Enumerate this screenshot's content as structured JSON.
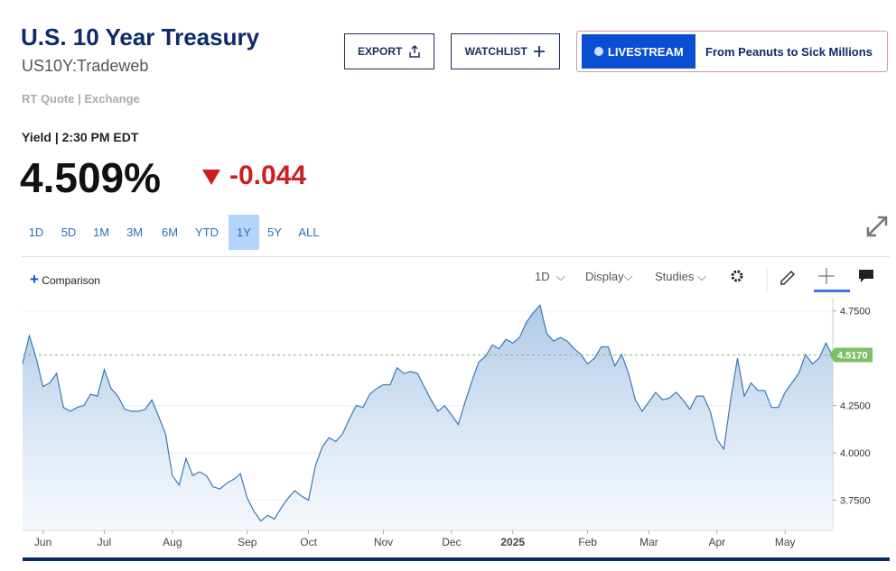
{
  "header": {
    "title": "U.S. 10 Year Treasury",
    "symbol": "US10Y:Tradeweb",
    "quote_source": "RT Quote | Exchange",
    "yield_label": "Yield | 2:30 PM EDT",
    "price": "4.509%",
    "change": "-0.044"
  },
  "buttons": {
    "export": "EXPORT",
    "watchlist": "WATCHLIST",
    "livestream": "LIVESTREAM",
    "promo": "From Peanuts to Sick Millions"
  },
  "ranges": [
    "1D",
    "5D",
    "1M",
    "3M",
    "6M",
    "YTD",
    "1Y",
    "5Y",
    "ALL"
  ],
  "toolbar": {
    "comparison": "Comparison",
    "interval": "1D",
    "display": "Display",
    "studies": "Studies"
  },
  "chart_data": {
    "type": "area",
    "color": "#3b78b4",
    "grid": true,
    "axis_side": "right",
    "categories": [
      null,
      null,
      null,
      "Jun",
      null,
      null,
      null,
      null,
      null,
      null,
      null,
      null,
      "Jul",
      null,
      null,
      null,
      null,
      null,
      null,
      null,
      null,
      null,
      "Aug",
      null,
      null,
      null,
      null,
      null,
      null,
      null,
      null,
      null,
      null,
      "Sep",
      null,
      null,
      null,
      null,
      null,
      null,
      null,
      null,
      "Oct",
      null,
      null,
      null,
      null,
      null,
      null,
      null,
      null,
      null,
      null,
      "Nov",
      null,
      null,
      null,
      null,
      null,
      null,
      null,
      null,
      null,
      "Dec",
      null,
      null,
      null,
      null,
      null,
      null,
      null,
      null,
      "2025",
      null,
      null,
      null,
      null,
      null,
      null,
      null,
      null,
      null,
      null,
      "Feb",
      null,
      null,
      null,
      null,
      null,
      null,
      null,
      null,
      "Mar",
      null,
      null,
      null,
      null,
      null,
      null,
      null,
      null,
      null,
      "Apr",
      null,
      null,
      null,
      null,
      null,
      null,
      null,
      null,
      null,
      "May",
      null,
      null,
      null,
      null,
      null,
      null,
      null
    ],
    "values": [
      4.47,
      4.62,
      4.5,
      4.35,
      4.37,
      4.42,
      4.24,
      4.22,
      4.24,
      4.25,
      4.31,
      4.3,
      4.44,
      4.34,
      4.3,
      4.23,
      4.22,
      4.22,
      4.23,
      4.28,
      4.19,
      4.1,
      3.88,
      3.83,
      3.97,
      3.88,
      3.9,
      3.88,
      3.82,
      3.81,
      3.84,
      3.86,
      3.89,
      3.76,
      3.69,
      3.64,
      3.67,
      3.65,
      3.71,
      3.76,
      3.8,
      3.77,
      3.75,
      3.93,
      4.03,
      4.08,
      4.06,
      4.1,
      4.18,
      4.25,
      4.24,
      4.31,
      4.34,
      4.36,
      4.36,
      4.45,
      4.42,
      4.43,
      4.42,
      4.35,
      4.28,
      4.22,
      4.25,
      4.2,
      4.15,
      4.27,
      4.38,
      4.48,
      4.51,
      4.57,
      4.55,
      4.6,
      4.58,
      4.61,
      4.69,
      4.74,
      4.78,
      4.63,
      4.59,
      4.61,
      4.59,
      4.55,
      4.52,
      4.47,
      4.5,
      4.56,
      4.56,
      4.46,
      4.52,
      4.42,
      4.28,
      4.22,
      4.27,
      4.32,
      4.28,
      4.29,
      4.32,
      4.28,
      4.23,
      4.3,
      4.3,
      4.22,
      4.07,
      4.02,
      4.28,
      4.5,
      4.3,
      4.37,
      4.33,
      4.33,
      4.24,
      4.24,
      4.32,
      4.37,
      4.42,
      4.52,
      4.47,
      4.5,
      4.58,
      4.51
    ],
    "ylim": [
      3.59,
      4.82
    ],
    "yticks": [
      {
        "value": 3.75,
        "label": "3.7500"
      },
      {
        "value": 4,
        "label": "4.0000"
      },
      {
        "value": 4.25,
        "label": "4.2500"
      },
      {
        "value": 4.75,
        "label": "4.7500"
      }
    ],
    "reference_line": {
      "value": 4.517,
      "label": "4.5170",
      "color": "#7cc06a"
    }
  }
}
